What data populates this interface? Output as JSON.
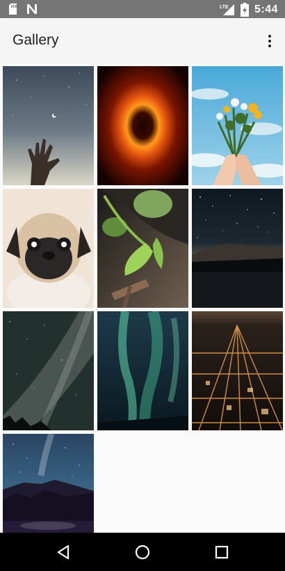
{
  "status_bar": {
    "time": "5:44",
    "network_label": "LTE",
    "icons": [
      "sd-card-icon",
      "n-notification-icon",
      "signal-icon",
      "battery-charging-icon"
    ],
    "background": "#757575"
  },
  "app_bar": {
    "title": "Gallery",
    "menu_icon": "overflow-menu-icon"
  },
  "gallery": {
    "photos": [
      {
        "subject": "hand reaching toward night sky"
      },
      {
        "subject": "black hole glowing ring"
      },
      {
        "subject": "hands holding flower bouquet against sky"
      },
      {
        "subject": "pug dog portrait"
      },
      {
        "subject": "green leaves plant"
      },
      {
        "subject": "starry night over lake"
      },
      {
        "subject": "milky way over trees"
      },
      {
        "subject": "green aurora"
      },
      {
        "subject": "city lights at night aerial"
      },
      {
        "subject": "milky way over mountain lake"
      }
    ]
  },
  "nav_bar": {
    "buttons": [
      "back-icon",
      "home-icon",
      "recents-icon"
    ]
  }
}
